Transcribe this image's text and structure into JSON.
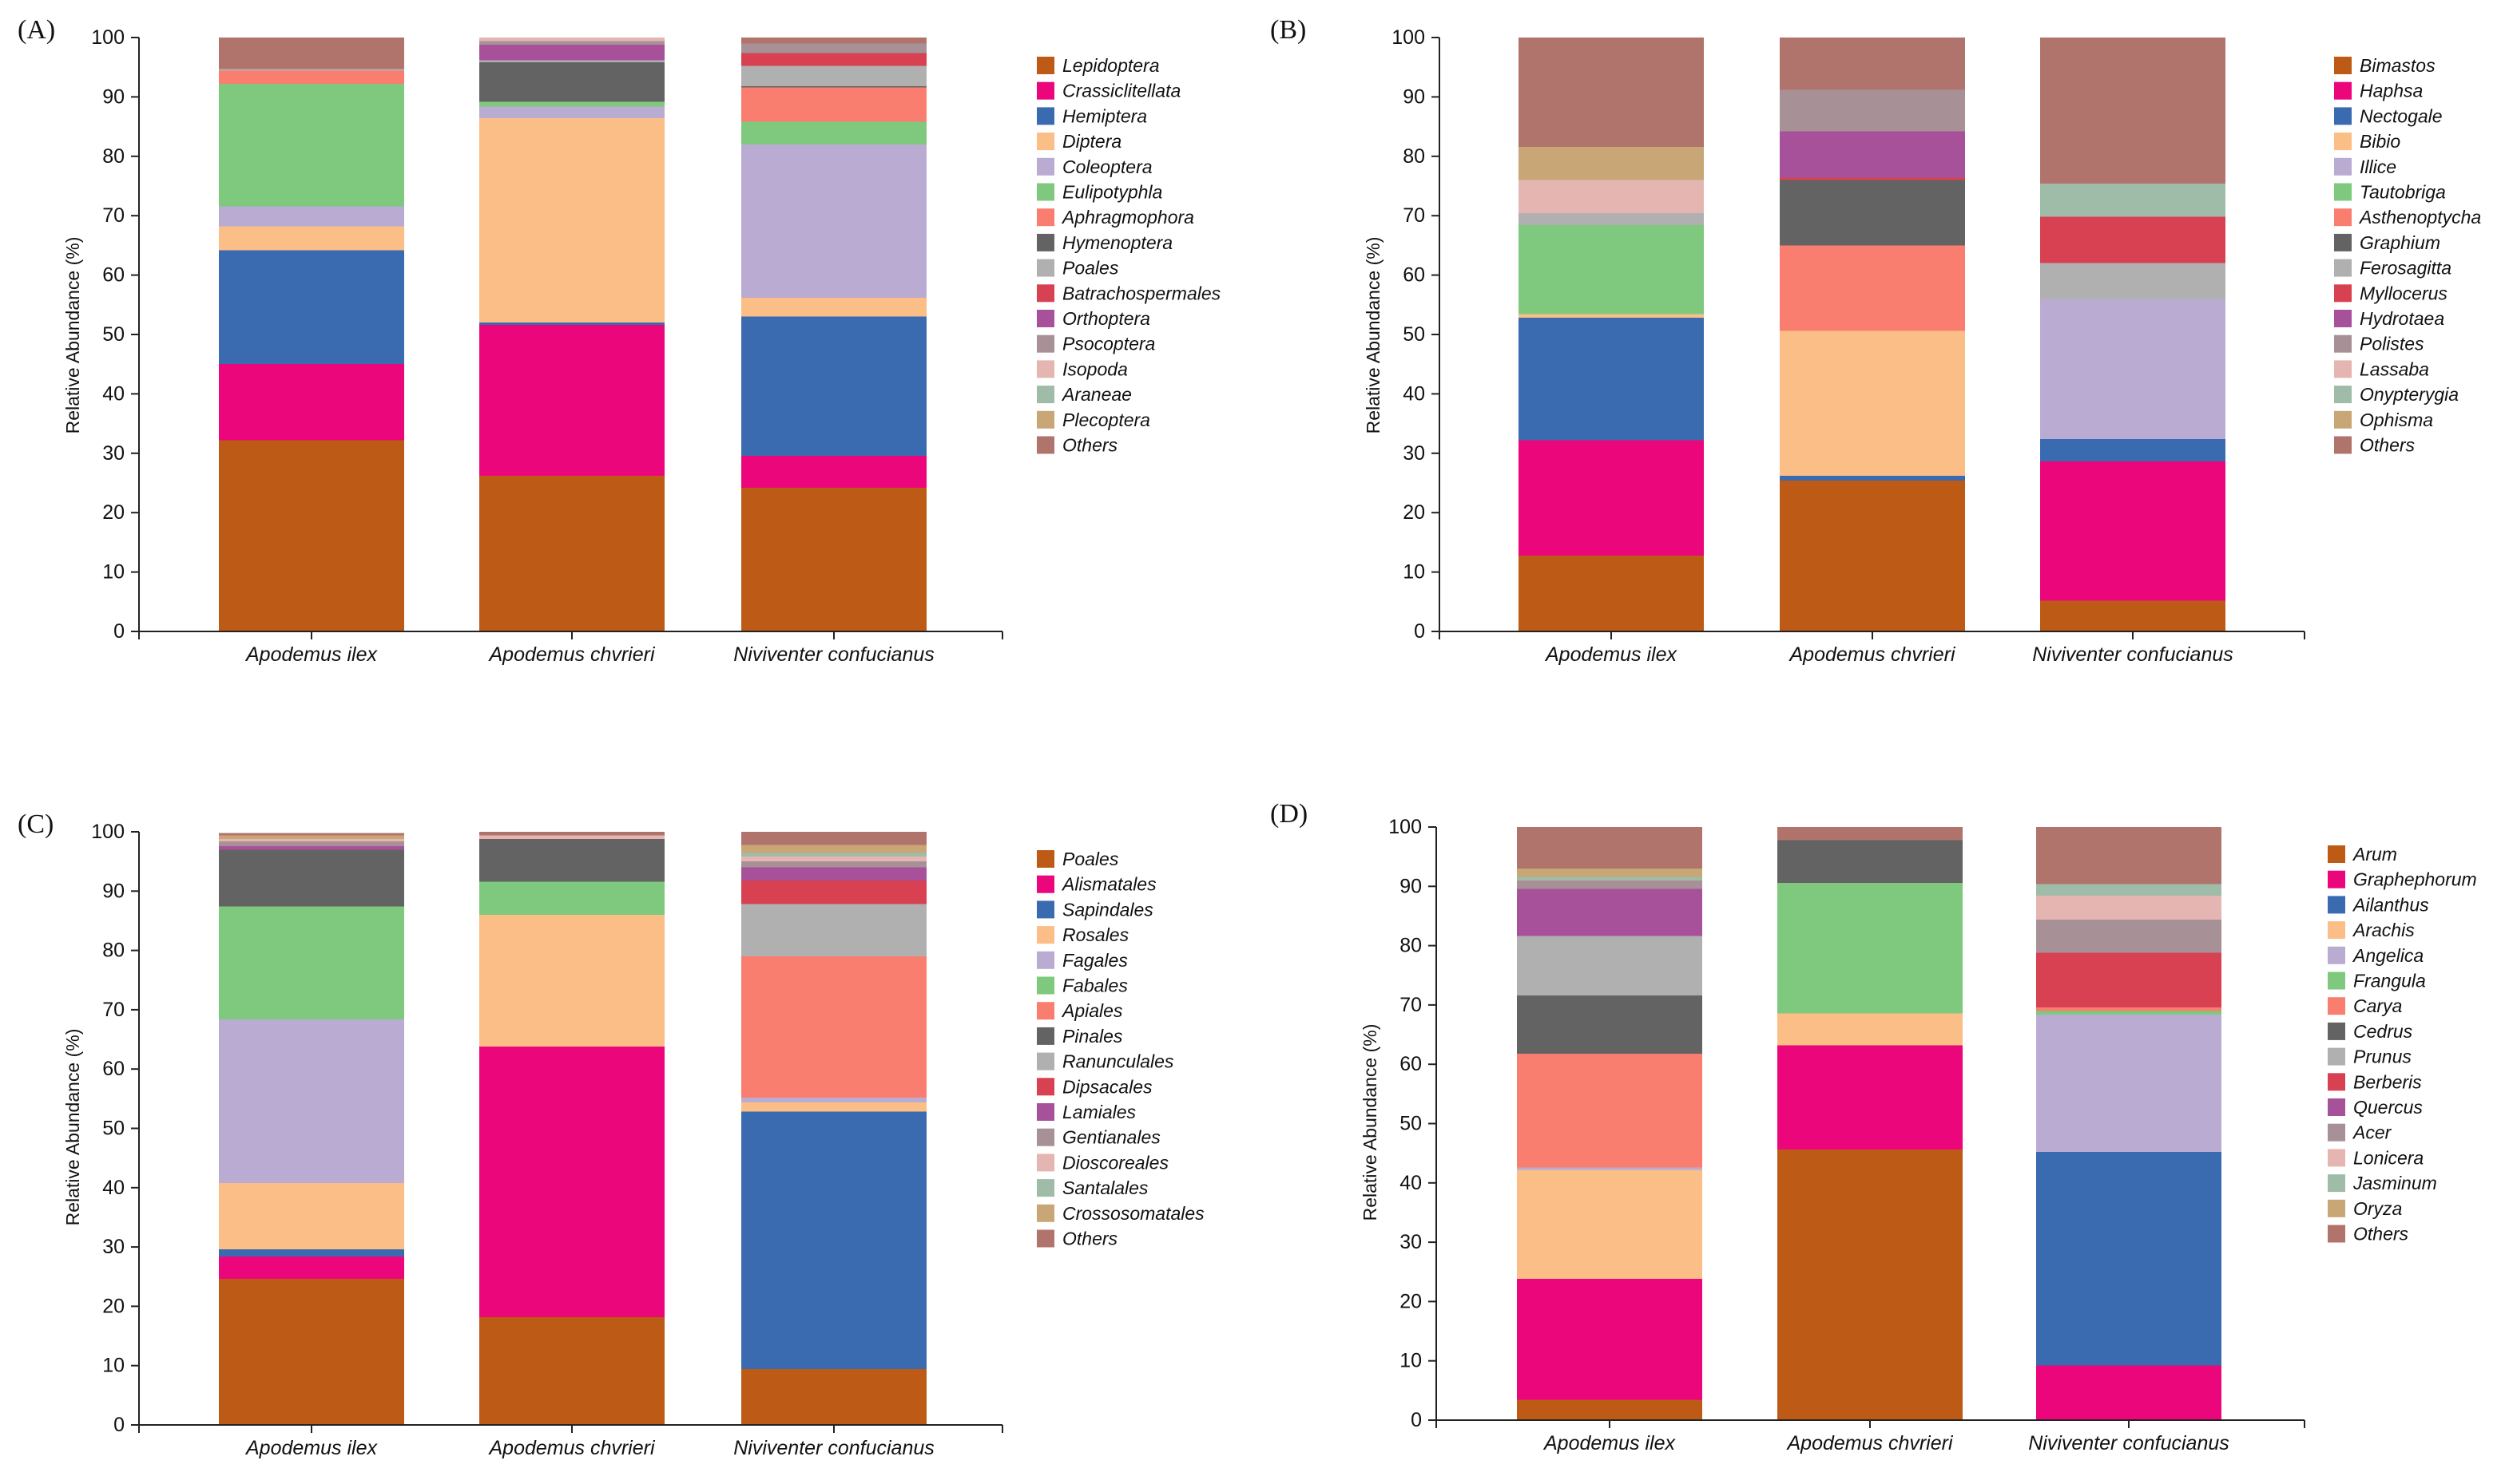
{
  "figure": {
    "colors": [
      "#BD5A16",
      "#EC067B",
      "#3A6BB0",
      "#FBBE86",
      "#BAABD3",
      "#7EC97D",
      "#F97E70",
      "#636363",
      "#B0B0B0",
      "#D74152",
      "#A7519B",
      "#A79197",
      "#E5B6B1",
      "#9FBCA8",
      "#C8A676",
      "#B0746D"
    ]
  },
  "chart_data": [
    {
      "panel": "(A)",
      "type": "bar",
      "stacked": true,
      "ylabel": "Relative Abundance (%)",
      "ylim": [
        0,
        100
      ],
      "yticks": [
        "0",
        "10",
        "20",
        "30",
        "40",
        "50",
        "60",
        "70",
        "80",
        "90",
        "100"
      ],
      "categories": [
        "Apodemus ilex",
        "Apodemus chvrieri",
        "Niviventer confucianus"
      ],
      "series": [
        {
          "name": "Lepidoptera",
          "values": [
            32.2,
            26.2,
            24.2
          ]
        },
        {
          "name": "Crassiclitellata",
          "values": [
            12.8,
            25.4,
            5.4
          ]
        },
        {
          "name": "Hemiptera",
          "values": [
            19.2,
            0.4,
            23.4
          ]
        },
        {
          "name": "Diptera",
          "values": [
            4.0,
            34.4,
            3.2
          ]
        },
        {
          "name": "Coleoptera",
          "values": [
            3.4,
            2.0,
            25.8
          ]
        },
        {
          "name": "Eulipotyphla",
          "values": [
            20.6,
            0.8,
            3.8
          ]
        },
        {
          "name": "Aphragmophora",
          "values": [
            2.2,
            0.0,
            5.8
          ]
        },
        {
          "name": "Hymenoptera",
          "values": [
            0.0,
            6.6,
            0.2
          ]
        },
        {
          "name": "Poales",
          "values": [
            0.3,
            0.4,
            3.4
          ]
        },
        {
          "name": "Batrachospermales",
          "values": [
            0.0,
            0.0,
            2.2
          ]
        },
        {
          "name": "Orthoptera",
          "values": [
            0.0,
            2.6,
            0.0
          ]
        },
        {
          "name": "Psocoptera",
          "values": [
            0.0,
            0.6,
            1.6
          ]
        },
        {
          "name": "Isopoda",
          "values": [
            0.0,
            0.6,
            0.0
          ]
        },
        {
          "name": "Araneae",
          "values": [
            0.0,
            0.0,
            0.0
          ]
        },
        {
          "name": "Plecoptera",
          "values": [
            0.0,
            0.0,
            0.0
          ]
        },
        {
          "name": "Others",
          "values": [
            5.3,
            0.0,
            1.0
          ]
        }
      ]
    },
    {
      "panel": "(B)",
      "type": "bar",
      "stacked": true,
      "ylabel": "Relative Abundance (%)",
      "ylim": [
        0,
        100
      ],
      "yticks": [
        "0",
        "10",
        "20",
        "30",
        "40",
        "50",
        "60",
        "70",
        "80",
        "90",
        "100"
      ],
      "categories": [
        "Apodemus ilex",
        "Apodemus chvrieri",
        "Niviventer confucianus"
      ],
      "series": [
        {
          "name": "Bimastos",
          "values": [
            12.8,
            25.4,
            5.2
          ]
        },
        {
          "name": "Haphsa",
          "values": [
            19.4,
            0.0,
            23.4
          ]
        },
        {
          "name": "Nectogale",
          "values": [
            20.6,
            0.8,
            3.8
          ]
        },
        {
          "name": "Bibio",
          "values": [
            0.6,
            24.4,
            0.0
          ]
        },
        {
          "name": "Illice",
          "values": [
            0.0,
            0.0,
            23.6
          ]
        },
        {
          "name": "Tautobriga",
          "values": [
            15.0,
            0.0,
            0.0
          ]
        },
        {
          "name": "Asthenoptycha",
          "values": [
            0.0,
            14.4,
            0.0
          ]
        },
        {
          "name": "Graphium",
          "values": [
            0.0,
            11.0,
            0.0
          ]
        },
        {
          "name": "Ferosagitta",
          "values": [
            2.0,
            0.0,
            6.0
          ]
        },
        {
          "name": "Myllocerus",
          "values": [
            0.0,
            0.4,
            7.8
          ]
        },
        {
          "name": "Hydrotaea",
          "values": [
            0.0,
            7.8,
            0.0
          ]
        },
        {
          "name": "Polistes",
          "values": [
            0.0,
            7.0,
            0.0
          ]
        },
        {
          "name": "Lassaba",
          "values": [
            5.6,
            0.0,
            0.0
          ]
        },
        {
          "name": "Onypterygia",
          "values": [
            0.0,
            0.0,
            5.6
          ]
        },
        {
          "name": "Ophisma",
          "values": [
            5.6,
            0.0,
            0.0
          ]
        },
        {
          "name": "Others",
          "values": [
            18.4,
            8.8,
            24.6
          ]
        }
      ]
    },
    {
      "panel": "(C)",
      "type": "bar",
      "stacked": true,
      "ylabel": "Relative Abundance (%)",
      "ylim": [
        0,
        100
      ],
      "yticks": [
        "0",
        "10",
        "20",
        "30",
        "40",
        "50",
        "60",
        "70",
        "80",
        "90",
        "100"
      ],
      "categories": [
        "Apodemus ilex",
        "Apodemus chvrieri",
        "Niviventer confucianus"
      ],
      "series": [
        {
          "name": "Poales",
          "values": [
            24.6,
            18.2,
            9.4
          ]
        },
        {
          "name": "Alismatales",
          "values": [
            3.8,
            45.6,
            0.0
          ]
        },
        {
          "name": "Sapindales",
          "values": [
            1.2,
            0.0,
            43.4
          ]
        },
        {
          "name": "Rosales",
          "values": [
            11.2,
            22.2,
            1.6
          ]
        },
        {
          "name": "Fagales",
          "values": [
            27.6,
            0.0,
            0.8
          ]
        },
        {
          "name": "Fabales",
          "values": [
            19.0,
            5.6,
            0.0
          ]
        },
        {
          "name": "Apiales",
          "values": [
            0.0,
            0.0,
            23.8
          ]
        },
        {
          "name": "Pinales",
          "values": [
            9.6,
            7.2,
            0.0
          ]
        },
        {
          "name": "Ranunculales",
          "values": [
            0.0,
            0.0,
            8.8
          ]
        },
        {
          "name": "Dipsacales",
          "values": [
            0.0,
            0.0,
            4.0
          ]
        },
        {
          "name": "Lamiales",
          "values": [
            0.6,
            0.0,
            2.2
          ]
        },
        {
          "name": "Gentianales",
          "values": [
            0.8,
            0.0,
            1.0
          ]
        },
        {
          "name": "Dioscoreales",
          "values": [
            0.4,
            0.6,
            0.8
          ]
        },
        {
          "name": "Santalales",
          "values": [
            0.0,
            0.0,
            0.6
          ]
        },
        {
          "name": "Crossosomatales",
          "values": [
            0.6,
            0.0,
            1.4
          ]
        },
        {
          "name": "Others",
          "values": [
            0.4,
            0.6,
            2.2
          ]
        }
      ]
    },
    {
      "panel": "(D)",
      "type": "bar",
      "stacked": true,
      "ylabel": "Relative Abundance (%)",
      "ylim": [
        0,
        100
      ],
      "yticks": [
        "0",
        "10",
        "20",
        "30",
        "40",
        "50",
        "60",
        "70",
        "80",
        "90",
        "100"
      ],
      "categories": [
        "Apodemus ilex",
        "Apodemus chvrieri",
        "Niviventer confucianus"
      ],
      "series": [
        {
          "name": "Arum",
          "values": [
            3.4,
            45.6,
            0.0
          ]
        },
        {
          "name": "Graphephorum",
          "values": [
            20.4,
            17.6,
            9.2
          ]
        },
        {
          "name": "Ailanthus",
          "values": [
            0.0,
            0.0,
            36.0
          ]
        },
        {
          "name": "Arachis",
          "values": [
            18.4,
            5.4,
            0.0
          ]
        },
        {
          "name": "Angelica",
          "values": [
            0.4,
            0.0,
            23.2
          ]
        },
        {
          "name": "Frangula",
          "values": [
            0.0,
            22.0,
            0.6
          ]
        },
        {
          "name": "Carya",
          "values": [
            19.2,
            0.0,
            0.6
          ]
        },
        {
          "name": "Cedrus",
          "values": [
            9.8,
            7.2,
            0.0
          ]
        },
        {
          "name": "Prunus",
          "values": [
            10.0,
            0.0,
            0.0
          ]
        },
        {
          "name": "Berberis",
          "values": [
            0.0,
            0.0,
            9.2
          ]
        },
        {
          "name": "Quercus",
          "values": [
            8.0,
            0.0,
            0.0
          ]
        },
        {
          "name": "Acer",
          "values": [
            1.4,
            0.0,
            5.6
          ]
        },
        {
          "name": "Lonicera",
          "values": [
            0.0,
            0.0,
            4.0
          ]
        },
        {
          "name": "Jasminum",
          "values": [
            0.6,
            0.0,
            2.0
          ]
        },
        {
          "name": "Oryza",
          "values": [
            1.4,
            0.0,
            0.0
          ]
        },
        {
          "name": "Others",
          "values": [
            7.0,
            2.2,
            9.6
          ]
        }
      ]
    }
  ]
}
